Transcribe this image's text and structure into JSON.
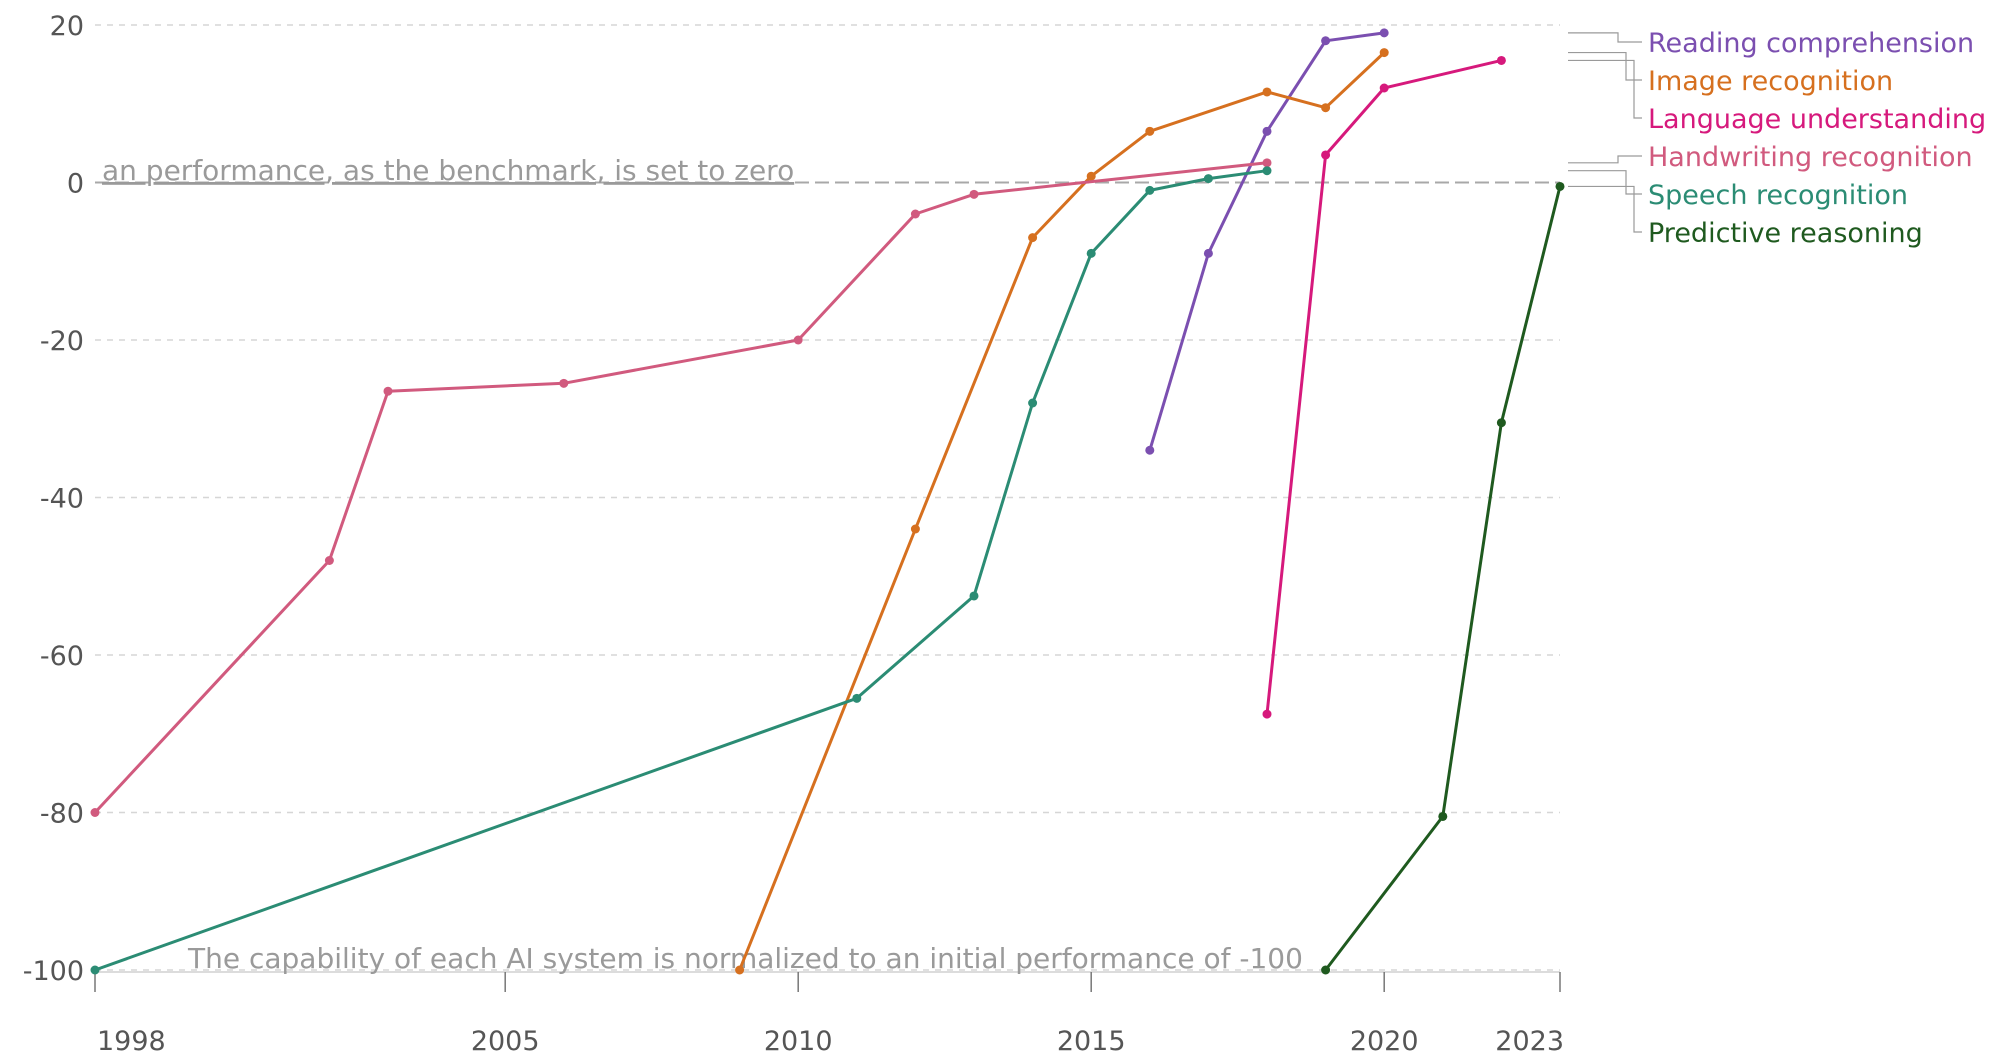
{
  "chart_data": {
    "type": "line",
    "xlim": [
      1998,
      2023
    ],
    "ylim": [
      -100,
      20
    ],
    "x_ticks": [
      {
        "value": 1998,
        "label": "1998"
      },
      {
        "value": 2005,
        "label": "2005"
      },
      {
        "value": 2010,
        "label": "2010"
      },
      {
        "value": 2015,
        "label": "2015"
      },
      {
        "value": 2020,
        "label": "2020"
      },
      {
        "value": 2023,
        "label": "2023"
      }
    ],
    "y_ticks": [
      {
        "value": 20,
        "label": "20"
      },
      {
        "value": 0,
        "label": "0"
      },
      {
        "value": -20,
        "label": "-20"
      },
      {
        "value": -40,
        "label": "-40"
      },
      {
        "value": -60,
        "label": "-60"
      },
      {
        "value": -80,
        "label": "-80"
      },
      {
        "value": -100,
        "label": "-100"
      }
    ],
    "grid": "horizontal dashed",
    "legend_position": "right",
    "annotations": {
      "zero_line": "an performance, as the benchmark, is set to zero",
      "baseline": "The capability of each AI system is normalized to an initial performance of -100"
    },
    "series": [
      {
        "name": "Reading comprehension",
        "color": "#7b4fb0",
        "x": [
          2016,
          2017,
          2018,
          2019,
          2020
        ],
        "y": [
          -34,
          -9,
          6.5,
          18,
          19
        ]
      },
      {
        "name": "Image recognition",
        "color": "#d6701f",
        "x": [
          2009,
          2012,
          2014,
          2015,
          2016,
          2018,
          2019,
          2020
        ],
        "y": [
          -100,
          -44,
          -7,
          0.8,
          6.5,
          11.5,
          9.5,
          16.5
        ]
      },
      {
        "name": "Language understanding",
        "color": "#d6197c",
        "x": [
          2018,
          2019,
          2020,
          2022
        ],
        "y": [
          -67.5,
          3.5,
          12,
          15.5
        ]
      },
      {
        "name": "Handwriting recognition",
        "color": "#d15a7e",
        "x": [
          1998,
          2002,
          2003,
          2006,
          2010,
          2012,
          2013,
          2018
        ],
        "y": [
          -80,
          -48,
          -26.5,
          -25.5,
          -20,
          -4,
          -1.5,
          2.5
        ]
      },
      {
        "name": "Speech recognition",
        "color": "#2b8c74",
        "x": [
          1998,
          2011,
          2013,
          2014,
          2015,
          2016,
          2017,
          2018
        ],
        "y": [
          -100,
          -65.5,
          -52.5,
          -28,
          -9,
          -1,
          0.5,
          1.5
        ]
      },
      {
        "name": "Predictive reasoning",
        "color": "#1f5a1f",
        "x": [
          2019,
          2021,
          2022,
          2023
        ],
        "y": [
          -100,
          -80.5,
          -30.5,
          -0.5
        ]
      }
    ]
  }
}
